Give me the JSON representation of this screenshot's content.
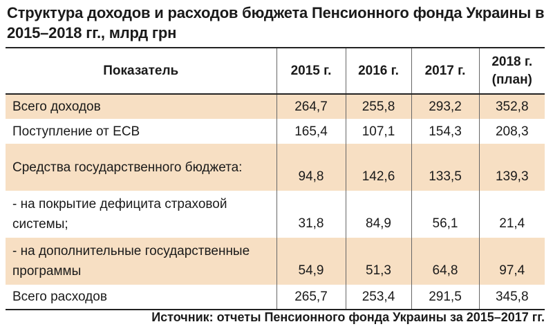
{
  "title": "Структура доходов и расходов бюджета Пенсионного фонда Украины в 2015–2018 гг., млрд грн",
  "table": {
    "headers": [
      "Показатель",
      "2015 г.",
      "2016 г.",
      "2017 г.",
      "2018 г. (план)"
    ],
    "rows": [
      {
        "label": "Всего доходов",
        "values": [
          "264,7",
          "255,8",
          "293,2",
          "352,8"
        ]
      },
      {
        "label": "Поступление от ЕСВ",
        "values": [
          "165,4",
          "107,1",
          "154,3",
          "208,3"
        ]
      },
      {
        "label": "Средства государственного бюджета:",
        "values": [
          "94,8",
          "142,6",
          "133,5",
          "139,3"
        ]
      },
      {
        "label": "- на покрытие дефицита страховой системы;",
        "values": [
          "31,8",
          "84,9",
          "56,1",
          "21,4"
        ]
      },
      {
        "label": "- на дополнительные государственные программы",
        "values": [
          "54,9",
          "51,3",
          "64,8",
          "97,4"
        ]
      },
      {
        "label": "Всего расходов",
        "values": [
          "265,7",
          "253,4",
          "291,5",
          "345,8"
        ]
      }
    ]
  },
  "source": "Источник: отчеты Пенсионного фонда Украины за 2015–2017 гг.",
  "colors": {
    "shade_row": "#f7dfc3",
    "rule": "#222222"
  }
}
